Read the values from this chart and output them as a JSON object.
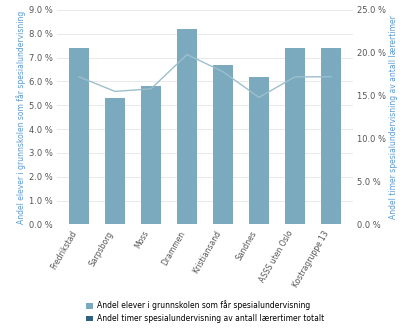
{
  "categories": [
    "Fredrikstad",
    "Sarpsborg",
    "Moss",
    "Drammen",
    "Kristiansand",
    "Sandnes",
    "ASSS uten Oslo",
    "Kostragruppe 13"
  ],
  "bar_values": [
    0.074,
    0.053,
    0.058,
    0.082,
    0.067,
    0.062,
    0.074,
    0.074
  ],
  "line_values": [
    0.172,
    0.155,
    0.158,
    0.198,
    0.178,
    0.148,
    0.172,
    0.172
  ],
  "bar_color": "#7baabe",
  "bar_color_dark": "#2e6080",
  "line_color": "#9dbfcc",
  "ylabel_left": "Andel elever i grunnskolen som får spesialundervisning",
  "ylabel_right": "Andel timer spesialundervisning av antall lærertimer",
  "ylim_left": [
    0,
    0.09
  ],
  "ylim_right": [
    0,
    0.25
  ],
  "yticks_left": [
    0.0,
    0.01,
    0.02,
    0.03,
    0.04,
    0.05,
    0.06,
    0.07,
    0.08,
    0.09
  ],
  "yticks_right": [
    0.0,
    0.05,
    0.1,
    0.15,
    0.2,
    0.25
  ],
  "legend_bar_label": "Andel elever i grunnskolen som får spesialundervisning",
  "legend_line_label": "Andel timer spesialundervisning av antall lærertimer totalt",
  "background_color": "#ffffff",
  "grid_color": "#e0e0e0",
  "label_color": "#5b9bd5",
  "tick_color": "#555555"
}
